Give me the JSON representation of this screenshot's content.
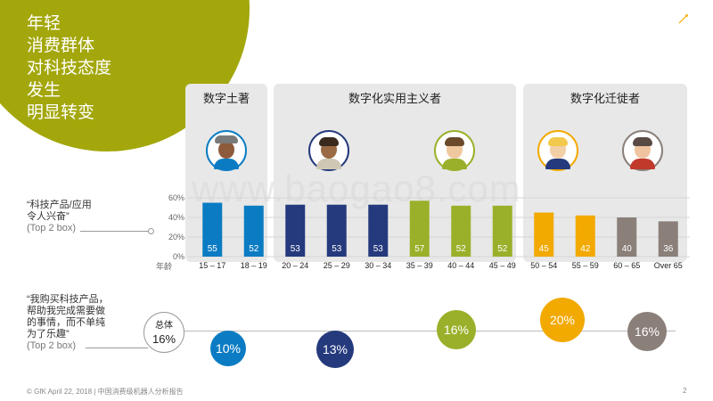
{
  "slide": {
    "title_lines": [
      "年轻",
      "消费群体",
      "对科技态度",
      "发生",
      "明显转变"
    ],
    "watermark": "www.baogao8.com",
    "footer": "© GfK April 22, 2018 | 中国消费级机器人分析报告",
    "page_number": "2"
  },
  "colors": {
    "olive": "#a3a70b",
    "blue": "#0b7cc3",
    "navy": "#253a7d",
    "green": "#9bb02a",
    "orange": "#f2a900",
    "gray": "#8a7f79"
  },
  "groups": [
    {
      "name": "数字土著",
      "color": "#0b7cc3",
      "avatars": [
        "avatar-hat-icon"
      ]
    },
    {
      "name": "数字化实用主义者",
      "color": "#253a7d",
      "avatars": [
        "avatar-beard-icon",
        "avatar-glasses-icon"
      ]
    },
    {
      "name": "数字化迁徙者",
      "color": "#f2a900",
      "avatars": [
        "avatar-blond-icon",
        "avatar-mustache-icon"
      ]
    }
  ],
  "row1_label": {
    "line1": "“科技产品/应用",
    "line2": "令人兴奋”",
    "sub": "(Top 2 box)"
  },
  "row2_label": {
    "line1": "“我购买科技产品，",
    "line2": "帮助我完成需要做",
    "line3": "的事情，而不单纯",
    "line4": "为了乐趣”",
    "sub": "(Top 2 box)"
  },
  "chart_data": {
    "type": "bar",
    "title": "",
    "xlabel": "年龄",
    "ylabel": "",
    "ylim": [
      0,
      60
    ],
    "yticks": [
      "0%",
      "20%",
      "40%",
      "60%"
    ],
    "categories": [
      "15 – 17",
      "18 – 19",
      "20 – 24",
      "25 – 29",
      "30 – 34",
      "35 – 39",
      "40 – 44",
      "45 – 49",
      "50 – 54",
      "55 – 59",
      "60 – 65",
      "Over 65"
    ],
    "values": [
      55,
      52,
      53,
      53,
      53,
      57,
      52,
      52,
      45,
      42,
      40,
      36
    ],
    "bar_colors": [
      "#0b7cc3",
      "#0b7cc3",
      "#253a7d",
      "#253a7d",
      "#253a7d",
      "#9bb02a",
      "#9bb02a",
      "#9bb02a",
      "#f2a900",
      "#f2a900",
      "#8a7f79",
      "#8a7f79"
    ]
  },
  "bubbles": {
    "total": {
      "label": "总体",
      "value": "16%"
    },
    "items": [
      {
        "value": "10%",
        "color": "#0b7cc3"
      },
      {
        "value": "13%",
        "color": "#253a7d"
      },
      {
        "value": "16%",
        "color": "#9bb02a"
      },
      {
        "value": "20%",
        "color": "#f2a900"
      },
      {
        "value": "16%",
        "color": "#8a7f79"
      }
    ]
  }
}
